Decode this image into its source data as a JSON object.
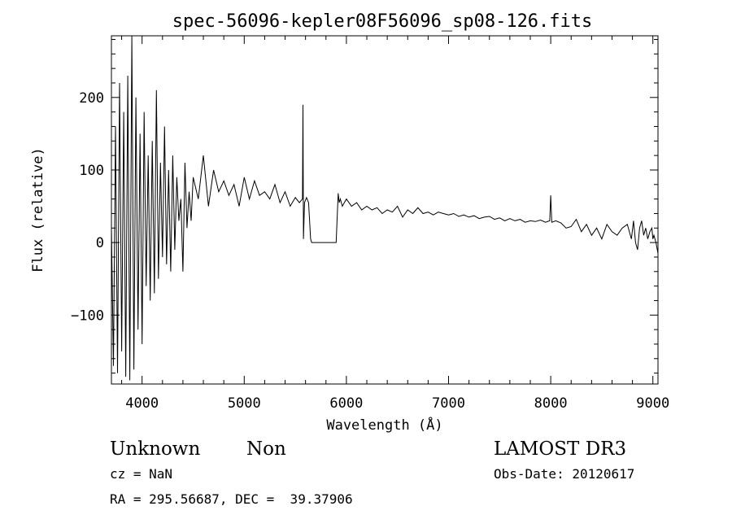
{
  "chart_data": {
    "type": "line",
    "title": "spec-56096-kepler08F56096_sp08-126.fits",
    "xlabel": "Wavelength (Å)",
    "ylabel": "Flux (relative)",
    "xlim": [
      3700,
      9050
    ],
    "ylim": [
      -195,
      285
    ],
    "xticks": [
      4000,
      5000,
      6000,
      7000,
      8000,
      9000
    ],
    "xtick_labels": [
      "4000",
      "5000",
      "6000",
      "7000",
      "8000",
      "9000"
    ],
    "yticks": [
      -100,
      0,
      100,
      200
    ],
    "ytick_labels": [
      "−100",
      "0",
      "100",
      "200"
    ],
    "grid": false,
    "legend": "none",
    "series": [
      {
        "x": [
          3700,
          3720,
          3740,
          3760,
          3780,
          3800,
          3820,
          3840,
          3860,
          3880,
          3900,
          3920,
          3940,
          3960,
          3980,
          4000,
          4020,
          4040,
          4060,
          4080,
          4100,
          4120,
          4140,
          4160,
          4180,
          4200,
          4220,
          4240,
          4260,
          4280,
          4300,
          4320,
          4340,
          4360,
          4380,
          4400,
          4420,
          4440,
          4460,
          4480,
          4500,
          4550,
          4600,
          4650,
          4700,
          4750,
          4800,
          4850,
          4900,
          4950,
          5000,
          5050,
          5100,
          5150,
          5200,
          5250,
          5300,
          5350,
          5400,
          5450,
          5500,
          5540,
          5570,
          5575,
          5580,
          5590,
          5610,
          5630,
          5650,
          5660,
          5700,
          5800,
          5900,
          5920,
          5930,
          5940,
          5960,
          6000,
          6050,
          6100,
          6150,
          6200,
          6250,
          6300,
          6350,
          6400,
          6450,
          6500,
          6550,
          6600,
          6650,
          6700,
          6750,
          6800,
          6850,
          6900,
          6950,
          7000,
          7050,
          7100,
          7150,
          7200,
          7250,
          7300,
          7350,
          7400,
          7450,
          7500,
          7550,
          7600,
          7650,
          7700,
          7750,
          7800,
          7850,
          7900,
          7950,
          7990,
          8000,
          8010,
          8050,
          8100,
          8150,
          8200,
          8250,
          8300,
          8350,
          8400,
          8450,
          8500,
          8550,
          8600,
          8650,
          8700,
          8750,
          8770,
          8790,
          8810,
          8830,
          8850,
          8870,
          8890,
          8910,
          8930,
          8950,
          8970,
          8990,
          9000,
          9010,
          9030,
          9050
        ],
        "y": [
          20,
          -170,
          160,
          -180,
          220,
          -150,
          180,
          -185,
          230,
          -190,
          285,
          -175,
          200,
          -120,
          150,
          -140,
          180,
          -60,
          120,
          -80,
          140,
          -70,
          210,
          -50,
          110,
          -20,
          160,
          -30,
          100,
          -40,
          120,
          -10,
          90,
          30,
          60,
          -40,
          110,
          20,
          70,
          30,
          90,
          60,
          120,
          50,
          100,
          70,
          85,
          65,
          80,
          50,
          90,
          60,
          85,
          65,
          70,
          60,
          80,
          55,
          70,
          50,
          62,
          55,
          60,
          190,
          5,
          55,
          62,
          55,
          5,
          0,
          0,
          0,
          0,
          68,
          55,
          60,
          50,
          60,
          50,
          55,
          45,
          50,
          45,
          48,
          40,
          45,
          42,
          50,
          35,
          45,
          40,
          48,
          40,
          42,
          38,
          42,
          40,
          38,
          40,
          36,
          38,
          35,
          37,
          33,
          35,
          36,
          32,
          34,
          30,
          33,
          30,
          32,
          28,
          30,
          29,
          31,
          28,
          30,
          65,
          28,
          30,
          27,
          20,
          22,
          32,
          15,
          25,
          10,
          20,
          5,
          25,
          15,
          10,
          20,
          25,
          15,
          5,
          30,
          0,
          -10,
          20,
          30,
          10,
          20,
          5,
          15,
          20,
          5,
          10,
          0,
          -15
        ]
      }
    ]
  },
  "caption": {
    "object_class": "Unknown",
    "object_subclass": "Non",
    "cz": "cz = NaN",
    "coords": "RA = 295.56687, DEC =  39.37906",
    "survey": "LAMOST DR3",
    "obs_date": "Obs-Date: 20120617"
  }
}
